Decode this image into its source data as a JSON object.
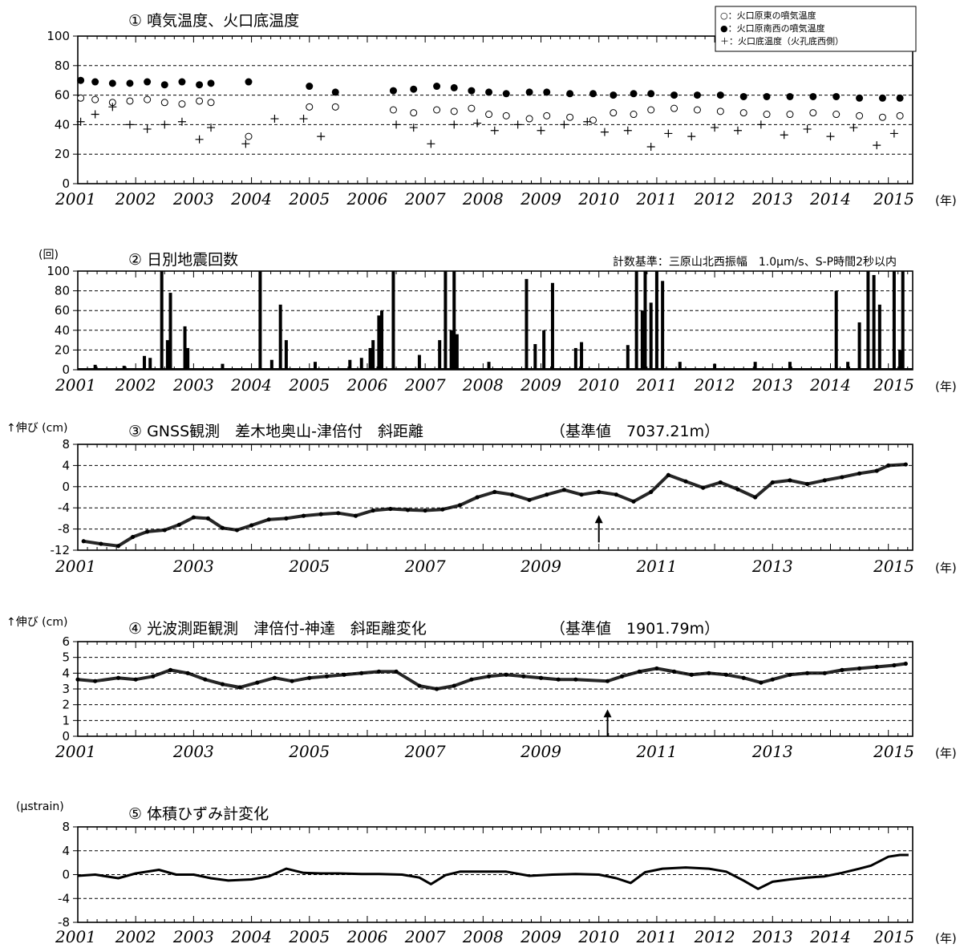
{
  "chart_data": [
    {
      "type": "scatter",
      "title": "① 噴気温度、火口底温度",
      "ylim": [
        0,
        100
      ],
      "y_ticks": [
        0,
        20,
        40,
        60,
        80,
        100
      ],
      "x_ticks": [
        "2001",
        "2002",
        "2003",
        "2004",
        "2005",
        "2006",
        "2007",
        "2008",
        "2009",
        "2010",
        "2011",
        "2012",
        "2013",
        "2014",
        "2015"
      ],
      "x_unit": "(年)",
      "grid": true,
      "legend_position": "top-right",
      "series": [
        {
          "name": "○：火口原東の噴気温度",
          "marker": "open-circle",
          "x": [
            2001.05,
            2001.3,
            2001.6,
            2001.9,
            2002.2,
            2002.5,
            2002.8,
            2003.1,
            2003.3,
            2003.95,
            2005.0,
            2005.45,
            2006.45,
            2006.8,
            2007.2,
            2007.5,
            2007.8,
            2008.1,
            2008.4,
            2008.8,
            2009.1,
            2009.5,
            2009.9,
            2010.25,
            2010.6,
            2010.9,
            2011.3,
            2011.7,
            2012.1,
            2012.5,
            2012.9,
            2013.3,
            2013.7,
            2014.1,
            2014.5,
            2014.9,
            2015.2
          ],
          "y": [
            58,
            57,
            55,
            56,
            57,
            55,
            54,
            56,
            55,
            32,
            52,
            52,
            50,
            48,
            50,
            49,
            51,
            47,
            46,
            44,
            46,
            45,
            43,
            48,
            47,
            50,
            51,
            50,
            49,
            48,
            47,
            47,
            48,
            47,
            46,
            45,
            46
          ]
        },
        {
          "name": "●：火口原南西の噴気温度",
          "marker": "filled-circle",
          "x": [
            2001.05,
            2001.3,
            2001.6,
            2001.9,
            2002.2,
            2002.5,
            2002.8,
            2003.1,
            2003.3,
            2003.95,
            2005.0,
            2005.45,
            2006.45,
            2006.8,
            2007.2,
            2007.5,
            2007.8,
            2008.1,
            2008.4,
            2008.8,
            2009.1,
            2009.5,
            2009.9,
            2010.25,
            2010.6,
            2010.9,
            2011.3,
            2011.7,
            2012.1,
            2012.5,
            2012.9,
            2013.3,
            2013.7,
            2014.1,
            2014.5,
            2014.9,
            2015.2
          ],
          "y": [
            70,
            69,
            68,
            68,
            69,
            67,
            69,
            67,
            68,
            69,
            66,
            62,
            63,
            64,
            66,
            65,
            63,
            62,
            61,
            62,
            62,
            61,
            61,
            60,
            61,
            61,
            60,
            60,
            60,
            59,
            59,
            59,
            59,
            59,
            58,
            58,
            58
          ]
        },
        {
          "name": "＋：火口底温度（火孔底西側）",
          "marker": "plus",
          "x": [
            2001.05,
            2001.3,
            2001.6,
            2001.9,
            2002.2,
            2002.5,
            2002.8,
            2003.1,
            2003.3,
            2003.9,
            2004.4,
            2004.9,
            2005.2,
            2006.5,
            2006.8,
            2007.1,
            2007.5,
            2007.9,
            2008.2,
            2008.6,
            2009.0,
            2009.4,
            2009.8,
            2010.1,
            2010.5,
            2010.9,
            2011.2,
            2011.6,
            2012.0,
            2012.4,
            2012.8,
            2013.2,
            2013.6,
            2014.0,
            2014.4,
            2014.8,
            2015.1
          ],
          "y": [
            42,
            47,
            52,
            40,
            37,
            40,
            42,
            30,
            38,
            27,
            44,
            44,
            32,
            40,
            38,
            27,
            40,
            41,
            36,
            40,
            36,
            40,
            42,
            35,
            36,
            25,
            34,
            32,
            38,
            36,
            40,
            33,
            37,
            32,
            38,
            26,
            34
          ]
        }
      ]
    },
    {
      "type": "bar",
      "title": "② 日別地震回数",
      "ylabel": "(回)",
      "annotation": "計数基準：三原山北西振幅　1.0μm/s、S-P時間2秒以内",
      "ylim": [
        0,
        100
      ],
      "y_ticks": [
        0,
        20,
        40,
        60,
        80,
        100
      ],
      "x_ticks": [
        "2001",
        "2002",
        "2003",
        "2004",
        "2005",
        "2006",
        "2007",
        "2008",
        "2009",
        "2010",
        "2011",
        "2012",
        "2013",
        "2014",
        "2015"
      ],
      "x_unit": "(年)",
      "grid": true,
      "x": [
        2001.3,
        2001.8,
        2002.15,
        2002.25,
        2002.45,
        2002.55,
        2002.6,
        2002.85,
        2002.9,
        2003.5,
        2004.15,
        2004.35,
        2004.5,
        2004.6,
        2005.1,
        2005.7,
        2005.9,
        2006.05,
        2006.1,
        2006.2,
        2006.25,
        2006.45,
        2006.9,
        2007.25,
        2007.35,
        2007.45,
        2007.5,
        2007.55,
        2008.1,
        2008.75,
        2008.9,
        2009.05,
        2009.2,
        2009.6,
        2009.7,
        2010.5,
        2010.65,
        2010.75,
        2010.8,
        2010.9,
        2011.0,
        2011.1,
        2011.4,
        2012.0,
        2012.7,
        2013.3,
        2014.1,
        2014.3,
        2014.5,
        2014.65,
        2014.75,
        2014.85,
        2015.1,
        2015.2,
        2015.25
      ],
      "values": [
        5,
        4,
        14,
        12,
        100,
        30,
        78,
        44,
        22,
        6,
        100,
        10,
        66,
        30,
        8,
        10,
        12,
        22,
        30,
        55,
        60,
        100,
        15,
        30,
        100,
        40,
        100,
        36,
        8,
        92,
        26,
        40,
        88,
        22,
        28,
        25,
        100,
        60,
        100,
        68,
        100,
        90,
        8,
        6,
        8,
        8,
        80,
        8,
        48,
        100,
        96,
        66,
        100,
        20,
        100
      ]
    },
    {
      "type": "scatter",
      "title": "③ GNSS観測　差木地奥山-津倍付　斜距離",
      "subtitle": "（基準値　7037.21m）",
      "ylabel": "↑伸び (cm)",
      "ylim": [
        -12,
        8
      ],
      "y_ticks": [
        -12,
        -8,
        -4,
        0,
        4,
        8
      ],
      "x_ticks": [
        "2001",
        "2003",
        "2005",
        "2007",
        "2009",
        "2011",
        "2013",
        "2015"
      ],
      "x_unit": "(年)",
      "grid": true,
      "series": [
        {
          "name": "",
          "x": [
            2001.1,
            2001.4,
            2001.7,
            2001.95,
            2002.2,
            2002.5,
            2002.75,
            2003.0,
            2003.25,
            2003.5,
            2003.75,
            2004.0,
            2004.3,
            2004.6,
            2004.9,
            2005.2,
            2005.5,
            2005.8,
            2006.1,
            2006.4,
            2006.7,
            2007.0,
            2007.3,
            2007.6,
            2007.9,
            2008.2,
            2008.5,
            2008.8,
            2009.1,
            2009.4,
            2009.7,
            2010.0,
            2010.3,
            2010.6,
            2010.9,
            2011.2,
            2011.5,
            2011.8,
            2012.1,
            2012.4,
            2012.7,
            2013.0,
            2013.3,
            2013.6,
            2013.9,
            2014.2,
            2014.5,
            2014.8,
            2015.0,
            2015.3
          ],
          "y": [
            -10.3,
            -10.8,
            -11.2,
            -9.5,
            -8.5,
            -8.2,
            -7.2,
            -5.8,
            -6.0,
            -7.8,
            -8.2,
            -7.3,
            -6.2,
            -6.0,
            -5.5,
            -5.2,
            -5.0,
            -5.5,
            -4.5,
            -4.2,
            -4.4,
            -4.5,
            -4.3,
            -3.5,
            -2.0,
            -1.0,
            -1.5,
            -2.5,
            -1.5,
            -0.6,
            -1.5,
            -1.0,
            -1.5,
            -2.8,
            -1.0,
            2.2,
            1.0,
            -0.2,
            0.8,
            -0.5,
            -2.0,
            0.8,
            1.2,
            0.5,
            1.2,
            1.8,
            2.5,
            3.0,
            4.0,
            4.2
          ]
        }
      ],
      "annotations": [
        {
          "type": "arrow-up",
          "x": 2010.0,
          "y": -7.5
        }
      ]
    },
    {
      "type": "scatter",
      "title": "④ 光波測距観測　津倍付-神達　斜距離変化",
      "subtitle": "（基準値　1901.79m）",
      "ylabel": "↑伸び (cm)",
      "ylim": [
        0,
        6
      ],
      "y_ticks": [
        0,
        1,
        2,
        3,
        4,
        5,
        6
      ],
      "x_ticks": [
        "2001",
        "2003",
        "2005",
        "2007",
        "2009",
        "2011",
        "2013",
        "2015"
      ],
      "x_unit": "(年)",
      "grid": true,
      "series": [
        {
          "name": "",
          "x": [
            2001.0,
            2001.3,
            2001.7,
            2002.0,
            2002.3,
            2002.6,
            2002.9,
            2003.2,
            2003.5,
            2003.8,
            2004.1,
            2004.4,
            2004.7,
            2005.0,
            2005.3,
            2005.6,
            2005.9,
            2006.2,
            2006.5,
            2006.9,
            2007.2,
            2007.5,
            2007.8,
            2008.1,
            2008.4,
            2008.7,
            2009.0,
            2009.3,
            2009.6,
            2010.15,
            2010.4,
            2010.7,
            2011.0,
            2011.3,
            2011.6,
            2011.9,
            2012.2,
            2012.5,
            2012.8,
            2013.0,
            2013.3,
            2013.6,
            2013.9,
            2014.2,
            2014.5,
            2014.8,
            2015.1,
            2015.3
          ],
          "y": [
            3.6,
            3.5,
            3.7,
            3.6,
            3.8,
            4.2,
            4.0,
            3.6,
            3.3,
            3.1,
            3.4,
            3.7,
            3.5,
            3.7,
            3.8,
            3.9,
            4.0,
            4.1,
            4.1,
            3.2,
            3.0,
            3.2,
            3.6,
            3.8,
            3.9,
            3.8,
            3.7,
            3.6,
            3.6,
            3.5,
            3.8,
            4.1,
            4.3,
            4.1,
            3.9,
            4.0,
            3.9,
            3.7,
            3.4,
            3.6,
            3.9,
            4.0,
            4.0,
            4.2,
            4.3,
            4.4,
            4.5,
            4.6
          ]
        }
      ],
      "annotations": [
        {
          "type": "arrow-up",
          "x": 2010.15,
          "y": 1.0
        }
      ]
    },
    {
      "type": "line",
      "title": "⑤ 体積ひずみ計変化",
      "ylabel": "(μstrain)",
      "ylim": [
        -8,
        8
      ],
      "y_ticks": [
        -8,
        -4,
        0,
        4,
        8
      ],
      "x_ticks": [
        "2001",
        "2002",
        "2003",
        "2004",
        "2005",
        "2006",
        "2007",
        "2008",
        "2009",
        "2010",
        "2011",
        "2012",
        "2013",
        "2014",
        "2015"
      ],
      "x_unit": "(年)",
      "grid": true,
      "series": [
        {
          "name": "",
          "x": [
            2001.0,
            2001.3,
            2001.7,
            2002.0,
            2002.4,
            2002.7,
            2003.0,
            2003.3,
            2003.6,
            2004.0,
            2004.3,
            2004.6,
            2004.9,
            2005.2,
            2005.5,
            2005.9,
            2006.2,
            2006.6,
            2006.9,
            2007.1,
            2007.35,
            2007.6,
            2008.0,
            2008.4,
            2008.8,
            2009.2,
            2009.6,
            2010.0,
            2010.3,
            2010.55,
            2010.8,
            2011.1,
            2011.5,
            2011.9,
            2012.2,
            2012.5,
            2012.75,
            2013.0,
            2013.3,
            2013.6,
            2013.9,
            2014.2,
            2014.5,
            2014.7,
            2015.0,
            2015.2,
            2015.35
          ],
          "y": [
            -0.2,
            0.0,
            -0.6,
            0.2,
            0.8,
            0.0,
            0.0,
            -0.6,
            -1.0,
            -0.8,
            -0.3,
            1.0,
            0.3,
            0.2,
            0.2,
            0.1,
            0.1,
            0.0,
            -0.5,
            -1.6,
            -0.1,
            0.5,
            0.5,
            0.5,
            -0.2,
            0.0,
            0.1,
            0.0,
            -0.6,
            -1.4,
            0.4,
            1.0,
            1.2,
            1.0,
            0.5,
            -1.0,
            -2.4,
            -1.2,
            -0.8,
            -0.5,
            -0.3,
            0.3,
            1.0,
            1.5,
            3.0,
            3.3,
            3.3
          ]
        }
      ]
    }
  ]
}
